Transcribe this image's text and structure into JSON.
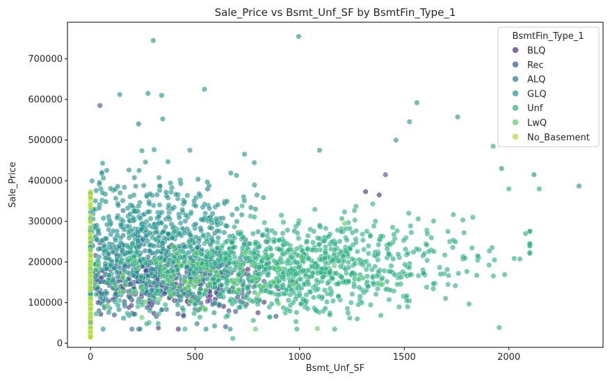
{
  "chart_data": {
    "type": "scatter",
    "title": "Sale_Price vs Bsmt_Unf_SF by BsmtFin_Type_1",
    "xlabel": "Bsmt_Unf_SF",
    "ylabel": "Sale_Price",
    "xlim": [
      -110,
      2450
    ],
    "ylim": [
      -10000,
      790000
    ],
    "xticks": [
      0,
      500,
      1000,
      1500,
      2000
    ],
    "yticks": [
      0,
      100000,
      200000,
      300000,
      400000,
      500000,
      600000,
      700000
    ],
    "grid": false,
    "legend": {
      "title": "BsmtFin_Type_1",
      "placement": "top-right"
    },
    "series": [
      {
        "name": "BLQ",
        "color": "#472d7b",
        "count": 150,
        "notable_points": [
          [
            1315,
            373000
          ],
          [
            1380,
            365000
          ],
          [
            420,
            35000
          ]
        ]
      },
      {
        "name": "Rec",
        "color": "#3b528b",
        "count": 200,
        "notable_points": [
          [
            45,
            585000
          ],
          [
            1410,
            415000
          ],
          [
            230,
            35000
          ]
        ]
      },
      {
        "name": "ALQ",
        "color": "#2c728e",
        "count": 300,
        "notable_points": [
          [
            230,
            540000
          ],
          [
            560,
            380000
          ]
        ]
      },
      {
        "name": "GLQ",
        "color": "#21918c",
        "count": 600,
        "notable_points": [
          [
            995,
            755000
          ],
          [
            300,
            745000
          ],
          [
            545,
            625000
          ],
          [
            140,
            612000
          ],
          [
            275,
            615000
          ],
          [
            340,
            610000
          ],
          [
            345,
            552000
          ],
          [
            1560,
            592000
          ],
          [
            1755,
            557000
          ],
          [
            1525,
            545000
          ],
          [
            1460,
            500000
          ],
          [
            1095,
            475000
          ],
          [
            2335,
            387000
          ],
          [
            1965,
            430000
          ],
          [
            2120,
            415000
          ]
        ]
      },
      {
        "name": "Unf",
        "color": "#28ae80",
        "count": 1000,
        "notable_points": [
          [
            1925,
            485000
          ],
          [
            2080,
            270000
          ],
          [
            2145,
            380000
          ],
          [
            2000,
            380000
          ],
          [
            680,
            12000
          ],
          [
            1275,
            60000
          ]
        ]
      },
      {
        "name": "LwQ",
        "color": "#5ec962",
        "count": 80,
        "notable_points": [
          [
            1215,
            295000
          ],
          [
            1395,
            145000
          ]
        ]
      },
      {
        "name": "No_Basement",
        "color": "#addc30",
        "count": 80,
        "x_value": 0,
        "y_range": [
          13000,
          375000
        ]
      }
    ]
  }
}
